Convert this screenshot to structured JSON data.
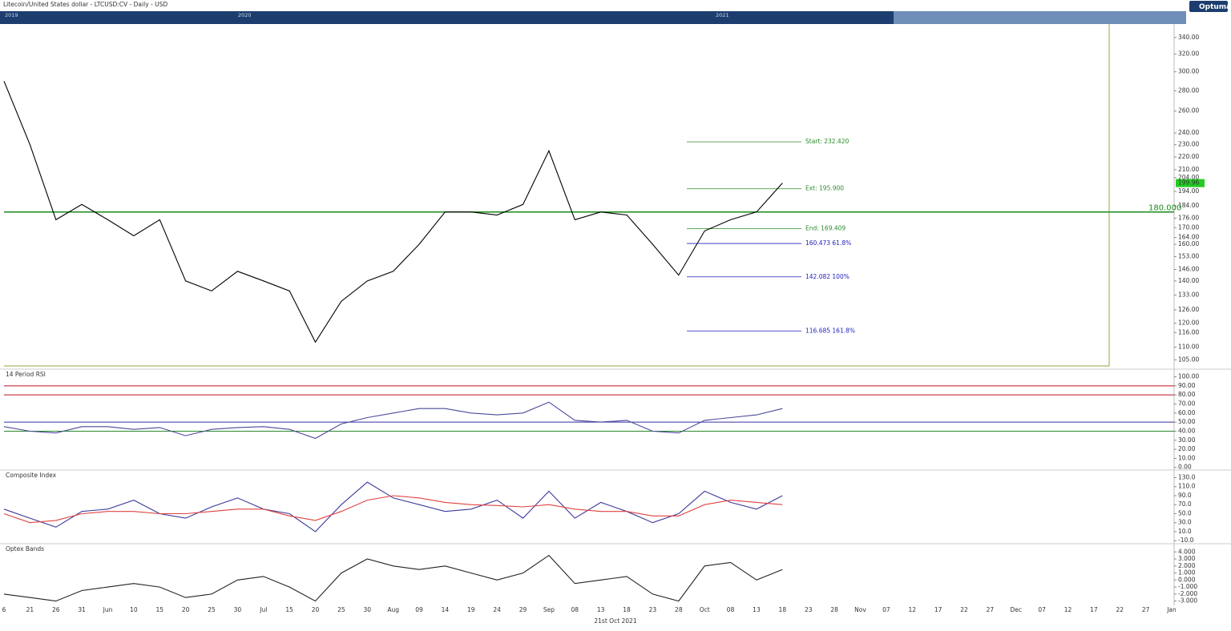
{
  "header": {
    "title": "Litecoin/United States dollar - LTCUSD:CV - Daily - USD",
    "brand": "Optuma",
    "navigator_years": [
      "2019",
      "2020",
      "2021"
    ],
    "footer_date": "21st Oct 2021"
  },
  "chart_data": [
    {
      "type": "line",
      "log_scale": true,
      "color": "#000000",
      "categories": [
        "6",
        "21",
        "26",
        "31",
        "Jun",
        "10",
        "15",
        "20",
        "25",
        "30",
        "Jul",
        "15",
        "20",
        "25",
        "30",
        "Aug",
        "09",
        "14",
        "19",
        "24",
        "29",
        "Sep",
        "08",
        "13",
        "18",
        "23",
        "28",
        "Oct",
        "08",
        "13",
        "18",
        "23",
        "28",
        "Nov",
        "07",
        "12",
        "17",
        "22",
        "27",
        "Dec",
        "07",
        "12",
        "17",
        "22",
        "27",
        "Jan"
      ],
      "values": [
        290,
        230,
        175,
        185,
        175,
        165,
        175,
        140,
        135,
        145,
        140,
        135,
        112,
        130,
        140,
        145,
        160,
        180,
        180,
        178,
        185,
        225,
        175,
        180,
        178,
        160,
        143,
        168,
        175,
        180,
        200,
        null,
        null,
        null,
        null,
        null,
        null,
        null,
        null,
        null,
        null,
        null,
        null,
        null,
        null,
        null
      ],
      "ylim": [
        103,
        355
      ],
      "yticks": [
        {
          "value": 340,
          "label": "340.00"
        },
        {
          "value": 320,
          "label": "320.00"
        },
        {
          "value": 300,
          "label": "300.00"
        },
        {
          "value": 280,
          "label": "280.00"
        },
        {
          "value": 260,
          "label": "260.00"
        },
        {
          "value": 240,
          "label": "240.00"
        },
        {
          "value": 230,
          "label": "230.00"
        },
        {
          "value": 220,
          "label": "220.00"
        },
        {
          "value": 210,
          "label": "210.00"
        },
        {
          "value": 204,
          "label": "204.00"
        },
        {
          "value": 194,
          "label": "194.00"
        },
        {
          "value": 184,
          "label": "184.00"
        },
        {
          "value": 176,
          "label": "176.00"
        },
        {
          "value": 170,
          "label": "170.00"
        },
        {
          "value": 164,
          "label": "164.00"
        },
        {
          "value": 160,
          "label": "160.00"
        },
        {
          "value": 153,
          "label": "153.00"
        },
        {
          "value": 146,
          "label": "146.00"
        },
        {
          "value": 140,
          "label": "140.00"
        },
        {
          "value": 133,
          "label": "133.00"
        },
        {
          "value": 126,
          "label": "126.00"
        },
        {
          "value": 120,
          "label": "120.00"
        },
        {
          "value": 116,
          "label": "116.00"
        },
        {
          "value": 110,
          "label": "110.00"
        },
        {
          "value": 105,
          "label": "105.00"
        }
      ],
      "last_price": 199.96,
      "levels": [
        {
          "value": 180,
          "label": "180.000",
          "color": "#1a8a1a"
        }
      ],
      "fib_levels": [
        {
          "value": 232.42,
          "label": "Start: 232.420",
          "color": "#2a8a2a"
        },
        {
          "value": 195.9,
          "label": "Ext: 195.900",
          "color": "#2a8a2a"
        },
        {
          "value": 169.409,
          "label": "End: 169.409",
          "color": "#2a8a2a"
        },
        {
          "value": 160.473,
          "label": "160.473   61.8%",
          "color": "#2020c0"
        },
        {
          "value": 142.082,
          "label": "142.082   100%",
          "color": "#2020c0"
        },
        {
          "value": 116.685,
          "label": "116.685   161.8%",
          "color": "#2020c0"
        }
      ]
    },
    {
      "type": "line",
      "title": "14 Period RSI",
      "color": "#4a4a9a",
      "values": [
        45,
        40,
        38,
        45,
        45,
        42,
        44,
        35,
        42,
        44,
        45,
        42,
        32,
        48,
        55,
        60,
        65,
        65,
        60,
        58,
        60,
        72,
        52,
        50,
        52,
        40,
        38,
        52,
        55,
        58,
        65,
        null,
        null,
        null,
        null,
        null,
        null,
        null,
        null,
        null,
        null,
        null,
        null,
        null,
        null,
        null
      ],
      "ylim": [
        -2,
        104
      ],
      "yticks": [
        {
          "value": 100,
          "label": "100.00"
        },
        {
          "value": 90,
          "label": "90.00"
        },
        {
          "value": 80,
          "label": "80.00"
        },
        {
          "value": 70,
          "label": "70.00"
        },
        {
          "value": 60,
          "label": "60.00"
        },
        {
          "value": 50,
          "label": "50.00"
        },
        {
          "value": 40,
          "label": "40.00"
        },
        {
          "value": 30,
          "label": "30.00"
        },
        {
          "value": 20,
          "label": "20.00"
        },
        {
          "value": 10,
          "label": "10.00"
        },
        {
          "value": 0,
          "label": "0.00"
        }
      ],
      "levels": [
        {
          "value": 90,
          "color": "#c01020"
        },
        {
          "value": 80,
          "color": "#c01020"
        },
        {
          "value": 50,
          "color": "#3030a0"
        },
        {
          "value": 40,
          "color": "#2a8a2a"
        }
      ]
    },
    {
      "type": "line",
      "title": "Composite Index",
      "series": [
        {
          "color": "#3a3a9a",
          "values": [
            60,
            40,
            20,
            55,
            60,
            80,
            50,
            40,
            65,
            85,
            60,
            50,
            10,
            70,
            120,
            85,
            70,
            55,
            60,
            80,
            40,
            100,
            40,
            75,
            55,
            30,
            50,
            100,
            75,
            60,
            90,
            null,
            null,
            null,
            null,
            null,
            null,
            null,
            null,
            null,
            null,
            null,
            null,
            null,
            null,
            null
          ]
        },
        {
          "color": "#e04040",
          "values": [
            50,
            30,
            35,
            50,
            55,
            55,
            50,
            50,
            55,
            60,
            60,
            45,
            35,
            55,
            80,
            90,
            85,
            75,
            70,
            68,
            65,
            70,
            60,
            55,
            55,
            45,
            45,
            70,
            80,
            75,
            70,
            null,
            null,
            null,
            null,
            null,
            null,
            null,
            null,
            null,
            null,
            null,
            null,
            null,
            null,
            null
          ]
        }
      ],
      "ylim": [
        -15,
        138
      ],
      "yticks": [
        {
          "value": 130,
          "label": "130.0"
        },
        {
          "value": 110,
          "label": "110.0"
        },
        {
          "value": 90,
          "label": "90.0"
        },
        {
          "value": 70,
          "label": "70.0"
        },
        {
          "value": 50,
          "label": "50.0"
        },
        {
          "value": 30,
          "label": "30.0"
        },
        {
          "value": 10,
          "label": "10.0"
        },
        {
          "value": -10,
          "label": "-10.0"
        }
      ]
    },
    {
      "type": "line",
      "title": "Optex Bands",
      "color": "#222222",
      "values": [
        -2,
        -2.5,
        -3,
        -1.5,
        -1,
        -0.5,
        -1,
        -2.5,
        -2,
        0,
        0.5,
        -1,
        -3,
        1,
        3,
        2,
        1.5,
        2,
        1,
        0,
        1,
        3.5,
        -0.5,
        0,
        0.5,
        -2,
        -3,
        2,
        2.5,
        0,
        1.5,
        null,
        null,
        null,
        null,
        null,
        null,
        null,
        null,
        null,
        null,
        null,
        null,
        null,
        null,
        null
      ],
      "ylim": [
        -3.5,
        4.6
      ],
      "yticks": [
        {
          "value": 4,
          "label": "4.000"
        },
        {
          "value": 3,
          "label": "3.000"
        },
        {
          "value": 2,
          "label": "2.000"
        },
        {
          "value": 1,
          "label": "1.000"
        },
        {
          "value": 0,
          "label": "0.000"
        },
        {
          "value": -1,
          "label": "-1.000"
        },
        {
          "value": -2,
          "label": "-2.000"
        },
        {
          "value": -3,
          "label": "-3.000"
        }
      ]
    }
  ]
}
